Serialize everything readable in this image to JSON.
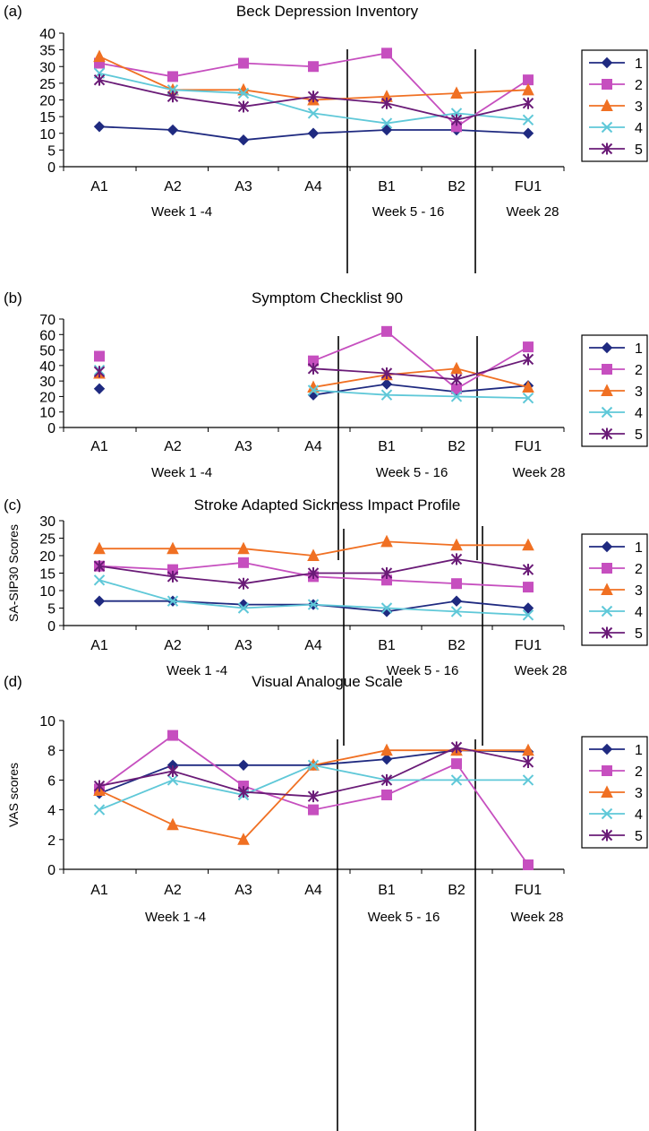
{
  "colors": {
    "s1": "#1f2a80",
    "s2": "#c64fbf",
    "s3": "#f07023",
    "s4": "#5fc8d8",
    "s5": "#6a1b77"
  },
  "chart_data": [
    {
      "type": "line",
      "panel_label": "(a)",
      "title": "Beck Depression Inventory",
      "ylabel": "",
      "ylim": [
        0,
        40
      ],
      "yticks": [
        0,
        5,
        10,
        15,
        20,
        25,
        30,
        35,
        40
      ],
      "categories": [
        "A1",
        "A2",
        "A3",
        "A4",
        "B1",
        "B2",
        "FU1"
      ],
      "phase_labels": [
        "Week 1 -4",
        "Week 5 - 16",
        "Week 28"
      ],
      "legend_position": "right",
      "series": [
        {
          "name": "1",
          "marker": "diamond",
          "values": [
            12,
            11,
            8,
            10,
            11,
            11,
            10
          ]
        },
        {
          "name": "2",
          "marker": "square",
          "values": [
            31,
            27,
            31,
            30,
            34,
            12,
            26
          ]
        },
        {
          "name": "3",
          "marker": "triangle",
          "values": [
            33,
            23,
            23,
            20,
            21,
            22,
            23
          ]
        },
        {
          "name": "4",
          "marker": "x",
          "values": [
            28,
            23,
            22,
            16,
            13,
            16,
            14
          ]
        },
        {
          "name": "5",
          "marker": "star",
          "values": [
            26,
            21,
            18,
            21,
            19,
            14,
            19
          ]
        }
      ]
    },
    {
      "type": "line",
      "panel_label": "(b)",
      "title": "Symptom Checklist 90",
      "ylabel": "",
      "ylim": [
        0,
        70
      ],
      "yticks": [
        0,
        10,
        20,
        30,
        40,
        50,
        60,
        70
      ],
      "categories": [
        "A1",
        "A2",
        "A3",
        "A4",
        "B1",
        "B2",
        "FU1"
      ],
      "phase_labels": [
        "Week 1 -4",
        "Week 5 - 16",
        "Week 28"
      ],
      "legend_position": "right",
      "series": [
        {
          "name": "1",
          "marker": "diamond",
          "values": [
            25,
            null,
            null,
            21,
            28,
            23,
            27
          ]
        },
        {
          "name": "2",
          "marker": "square",
          "values": [
            46,
            null,
            null,
            43,
            62,
            25,
            52
          ]
        },
        {
          "name": "3",
          "marker": "triangle",
          "values": [
            35,
            null,
            null,
            26,
            34,
            38,
            26
          ]
        },
        {
          "name": "4",
          "marker": "x",
          "values": [
            37,
            null,
            null,
            24,
            21,
            20,
            19
          ]
        },
        {
          "name": "5",
          "marker": "star",
          "values": [
            36,
            null,
            null,
            38,
            35,
            31,
            44
          ]
        }
      ]
    },
    {
      "type": "line",
      "panel_label": "(c)",
      "title": "Stroke Adapted Sickness Impact Profile",
      "ylabel": "SA-SIP30 Scores",
      "ylim": [
        0,
        30
      ],
      "yticks": [
        0,
        5,
        10,
        15,
        20,
        25,
        30
      ],
      "categories": [
        "A1",
        "A2",
        "A3",
        "A4",
        "B1",
        "B2",
        "FU1"
      ],
      "phase_labels": [
        "Week 1 -4",
        "Week 5 - 16",
        "Week 28"
      ],
      "legend_position": "right",
      "series": [
        {
          "name": "1",
          "marker": "diamond",
          "values": [
            7,
            7,
            6,
            6,
            4,
            7,
            5
          ]
        },
        {
          "name": "2",
          "marker": "square",
          "values": [
            17,
            16,
            18,
            14,
            13,
            12,
            11
          ]
        },
        {
          "name": "3",
          "marker": "triangle",
          "values": [
            22,
            22,
            22,
            20,
            24,
            23,
            23
          ]
        },
        {
          "name": "4",
          "marker": "x",
          "values": [
            13,
            7,
            5,
            6,
            5,
            4,
            3
          ]
        },
        {
          "name": "5",
          "marker": "star",
          "values": [
            17,
            14,
            12,
            15,
            15,
            19,
            16
          ]
        }
      ]
    },
    {
      "type": "line",
      "panel_label": "(d)",
      "title": "Visual Analogue Scale",
      "ylabel": "VAS scores",
      "ylim": [
        0,
        10
      ],
      "yticks": [
        0,
        2,
        4,
        6,
        8,
        10
      ],
      "categories": [
        "A1",
        "A2",
        "A3",
        "A4",
        "B1",
        "B2",
        "FU1"
      ],
      "phase_labels": [
        "Week 1 -4",
        "Week 5 - 16",
        "Week 28"
      ],
      "legend_position": "right",
      "series": [
        {
          "name": "1",
          "marker": "diamond",
          "values": [
            5.1,
            7,
            7,
            7,
            7.4,
            8,
            7.9
          ]
        },
        {
          "name": "2",
          "marker": "square",
          "values": [
            5.4,
            9,
            5.6,
            4,
            5,
            7.1,
            0.3
          ]
        },
        {
          "name": "3",
          "marker": "triangle",
          "values": [
            5.3,
            3,
            2,
            7,
            8,
            8,
            8
          ]
        },
        {
          "name": "4",
          "marker": "x",
          "values": [
            4,
            6,
            5,
            7,
            6,
            6,
            6
          ]
        },
        {
          "name": "5",
          "marker": "star",
          "values": [
            5.6,
            6.6,
            5.2,
            4.9,
            6,
            8.2,
            7.2
          ]
        }
      ]
    }
  ]
}
